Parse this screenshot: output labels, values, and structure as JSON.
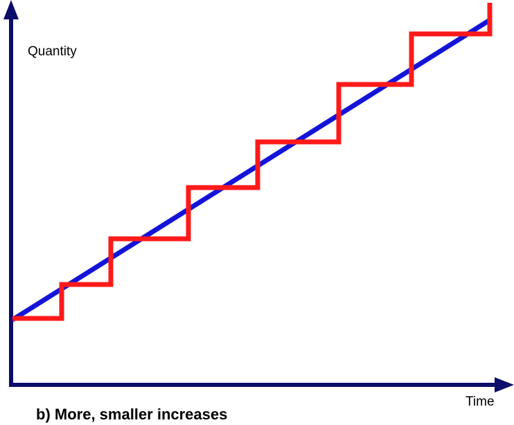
{
  "diagram": {
    "y_axis_label": "Quantity",
    "x_axis_label": "Time",
    "caption": "b) More, smaller increases",
    "colors": {
      "axes": "#0d0d6b",
      "smooth_line": "#1414d8",
      "step_line": "#ff1a1a"
    },
    "smooth_line": "steady linear increase",
    "step_line": "staircase of discrete increases around the steady line"
  }
}
